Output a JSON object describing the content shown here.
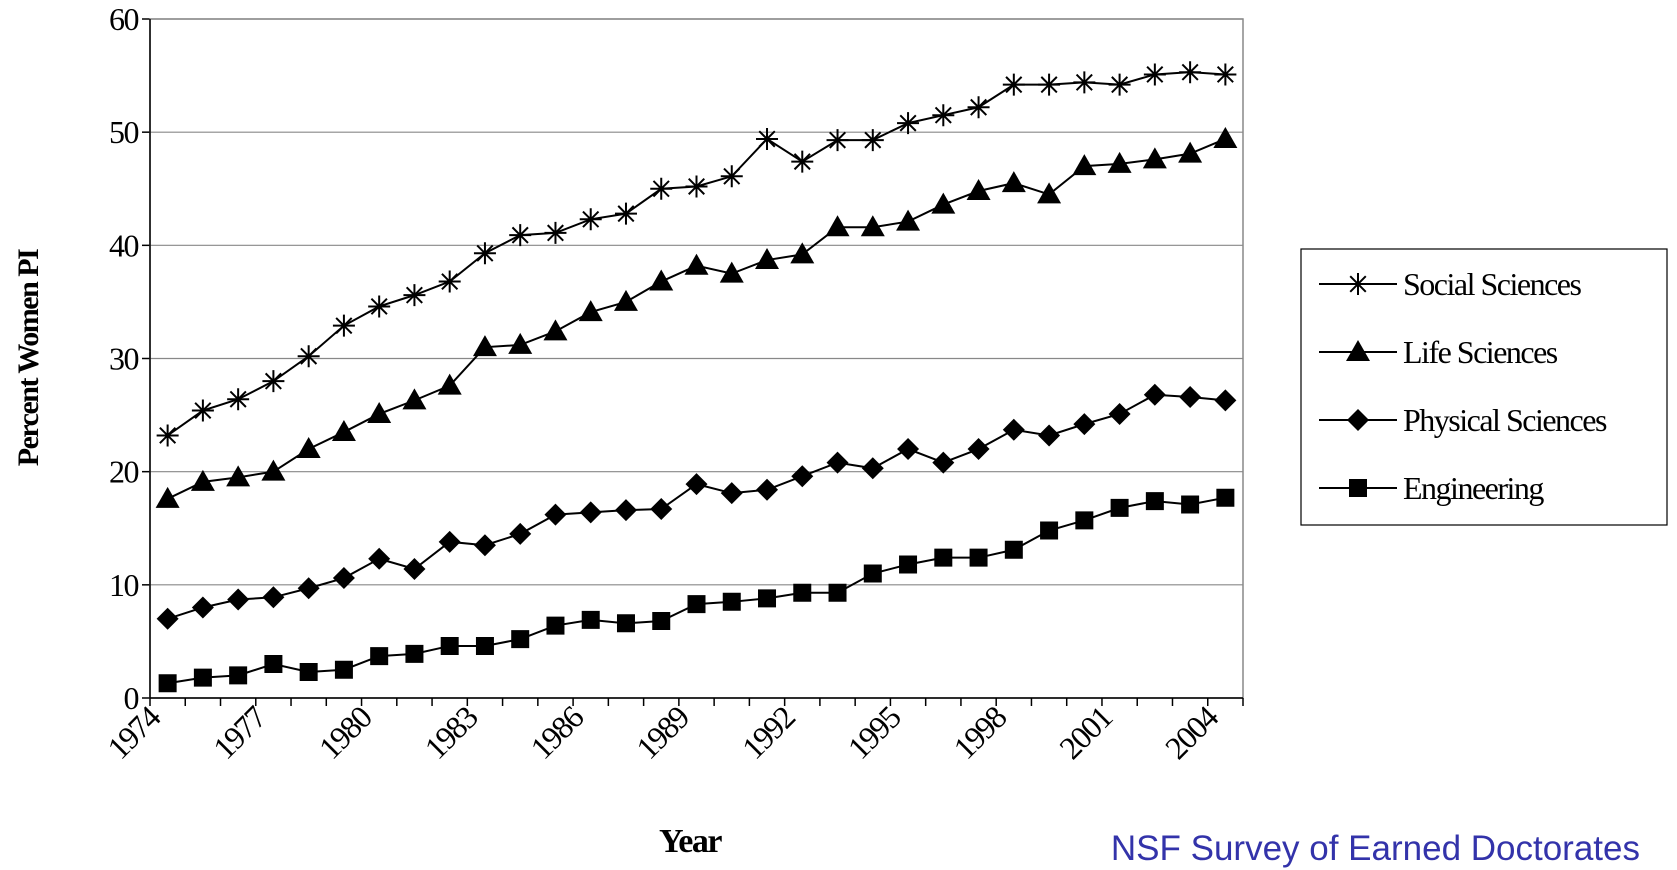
{
  "chart_data": {
    "type": "line",
    "x_label": "Year",
    "y_label": "Percent Women PI",
    "source": "NSF Survey of Earned Doctorates",
    "categories": [
      "1974",
      null,
      null,
      "1977",
      null,
      null,
      "1980",
      null,
      null,
      "1983",
      null,
      null,
      "1986",
      null,
      null,
      "1989",
      null,
      null,
      "1992",
      null,
      null,
      "1995",
      null,
      null,
      "1998",
      null,
      null,
      "2001",
      null,
      null,
      "2004"
    ],
    "ylim": [
      0,
      60
    ],
    "yticks": [
      0,
      10,
      20,
      30,
      40,
      50,
      60
    ],
    "grid": true,
    "legend": "right",
    "series": [
      {
        "name": "Social Sciences",
        "color": "#000000",
        "marker": "star",
        "values": [
          23.2,
          25.4,
          26.4,
          28.0,
          30.2,
          32.9,
          34.6,
          35.6,
          36.8,
          39.3,
          40.9,
          41.1,
          42.3,
          42.8,
          45.0,
          45.2,
          46.1,
          49.4,
          47.4,
          49.3,
          49.3,
          50.8,
          51.5,
          52.2,
          54.2,
          54.2,
          54.4,
          54.2,
          55.1,
          55.3,
          55.1
        ]
      },
      {
        "name": "Life Sciences",
        "color": "#000000",
        "marker": "triangle",
        "values": [
          17.6,
          19.1,
          19.5,
          20.0,
          22.0,
          23.5,
          25.1,
          26.3,
          27.6,
          31.0,
          31.2,
          32.4,
          34.1,
          35.0,
          36.8,
          38.2,
          37.5,
          38.7,
          39.2,
          41.6,
          41.6,
          42.1,
          43.6,
          44.8,
          45.5,
          44.5,
          47.0,
          47.2,
          47.6,
          48.1,
          49.4
        ]
      },
      {
        "name": "Physical Sciences",
        "color": "#000000",
        "marker": "diamond",
        "values": [
          7.0,
          8.0,
          8.7,
          8.9,
          9.7,
          10.6,
          12.3,
          11.4,
          13.8,
          13.5,
          14.5,
          16.2,
          16.4,
          16.6,
          16.7,
          18.9,
          18.1,
          18.4,
          19.6,
          20.8,
          20.3,
          22.0,
          20.8,
          22.0,
          23.7,
          23.2,
          24.2,
          25.1,
          26.8,
          26.6,
          26.3
        ]
      },
      {
        "name": "Engineering",
        "color": "#000000",
        "marker": "square",
        "values": [
          1.3,
          1.8,
          2.0,
          3.0,
          2.3,
          2.5,
          3.7,
          3.9,
          4.6,
          4.6,
          5.2,
          6.4,
          6.9,
          6.6,
          6.8,
          8.3,
          8.5,
          8.8,
          9.3,
          9.3,
          11.0,
          11.8,
          12.4,
          12.4,
          13.1,
          14.8,
          15.7,
          16.8,
          17.4,
          17.1,
          17.7
        ]
      }
    ]
  }
}
